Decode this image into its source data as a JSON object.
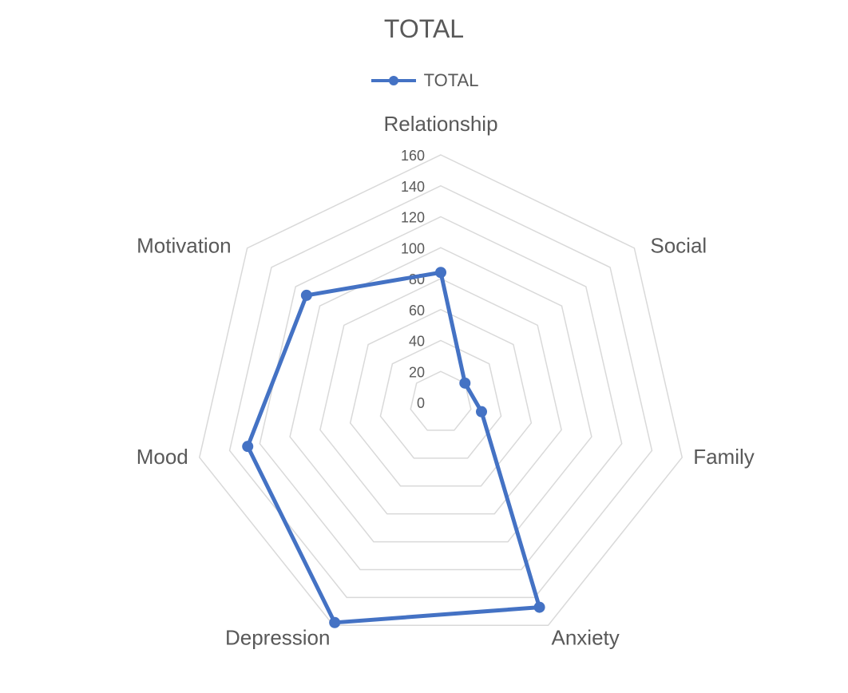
{
  "chart_data": {
    "type": "radar",
    "title": "TOTAL",
    "categories": [
      "Relationship",
      "Social",
      "Family",
      "Anxiety",
      "Depression",
      "Mood",
      "Motivation"
    ],
    "series": [
      {
        "name": "TOTAL",
        "values": [
          84,
          20,
          27,
          147,
          158,
          128,
          111
        ]
      }
    ],
    "rlim": [
      0,
      160
    ],
    "ticks": [
      0,
      20,
      40,
      60,
      80,
      100,
      120,
      140,
      160
    ],
    "grid": true,
    "legend_position": "top",
    "colors": {
      "series": "#4472C4",
      "grid": "#D9D9D9",
      "text": "#595959"
    }
  }
}
